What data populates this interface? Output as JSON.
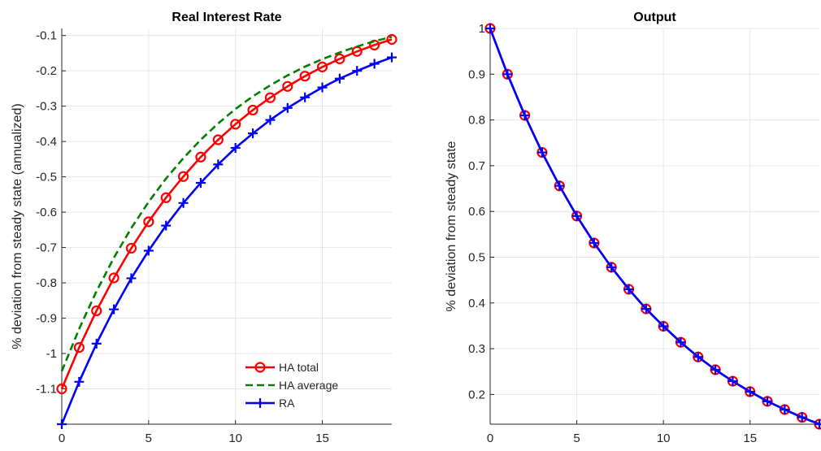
{
  "chart_data": [
    {
      "type": "line",
      "title": "Real Interest Rate",
      "xlabel": "",
      "ylabel": "% deviation from steady state (annualized)",
      "xlim": [
        0,
        19
      ],
      "ylim": [
        -1.2,
        -0.08
      ],
      "xticks": [
        0,
        5,
        10,
        15
      ],
      "yticks": [
        -1.1,
        -1,
        -0.9,
        -0.8,
        -0.7,
        -0.6,
        -0.5,
        -0.4,
        -0.3,
        -0.2,
        -0.1
      ],
      "ytick_labels": [
        "-1.1",
        "-1",
        "-0.9",
        "-0.8",
        "-0.7",
        "-0.6",
        "-0.5",
        "-0.4",
        "-0.3",
        "-0.2",
        "-0.1"
      ],
      "xtick_labels": [
        "0",
        "5",
        "10",
        "15"
      ],
      "grid": true,
      "legend_position": "bottom-right",
      "x": [
        0,
        1,
        2,
        3,
        4,
        5,
        6,
        7,
        8,
        9,
        10,
        11,
        12,
        13,
        14,
        15,
        16,
        17,
        18,
        19
      ],
      "series": [
        {
          "name": "HA total",
          "color": "#ff0000",
          "style": "solid",
          "marker": "circle",
          "values": [
            -1.1,
            -0.983,
            -0.879,
            -0.786,
            -0.702,
            -0.627,
            -0.559,
            -0.499,
            -0.444,
            -0.395,
            -0.351,
            -0.311,
            -0.276,
            -0.244,
            -0.215,
            -0.189,
            -0.166,
            -0.145,
            -0.127,
            -0.111
          ]
        },
        {
          "name": "HA average",
          "color": "#008000",
          "style": "dashed",
          "marker": "none",
          "values": [
            -1.05,
            -0.93,
            -0.824,
            -0.729,
            -0.645,
            -0.571,
            -0.505,
            -0.447,
            -0.395,
            -0.349,
            -0.308,
            -0.272,
            -0.241,
            -0.213,
            -0.188,
            -0.167,
            -0.148,
            -0.131,
            -0.116,
            -0.104
          ]
        },
        {
          "name": "RA",
          "color": "#0000ff",
          "style": "solid",
          "marker": "plus",
          "values": [
            -1.2,
            -1.08,
            -0.972,
            -0.875,
            -0.787,
            -0.709,
            -0.638,
            -0.574,
            -0.517,
            -0.465,
            -0.418,
            -0.377,
            -0.339,
            -0.305,
            -0.275,
            -0.247,
            -0.222,
            -0.2,
            -0.18,
            -0.162
          ]
        }
      ]
    },
    {
      "type": "line",
      "title": "Output",
      "xlabel": "",
      "ylabel": "% deviation from steady state",
      "xlim": [
        0,
        19
      ],
      "ylim": [
        0.135,
        1.0
      ],
      "xticks": [
        0,
        5,
        10,
        15
      ],
      "yticks": [
        0.2,
        0.3,
        0.4,
        0.5,
        0.6,
        0.7,
        0.8,
        0.9,
        1
      ],
      "ytick_labels": [
        "0.2",
        "0.3",
        "0.4",
        "0.5",
        "0.6",
        "0.7",
        "0.8",
        "0.9",
        "1"
      ],
      "xtick_labels": [
        "0",
        "5",
        "10",
        "15"
      ],
      "grid": true,
      "x": [
        0,
        1,
        2,
        3,
        4,
        5,
        6,
        7,
        8,
        9,
        10,
        11,
        12,
        13,
        14,
        15,
        16,
        17,
        18,
        19
      ],
      "series": [
        {
          "name": "HA total",
          "color": "#ff0000",
          "style": "solid",
          "marker": "circle",
          "values": [
            1,
            0.9,
            0.81,
            0.729,
            0.656,
            0.59,
            0.531,
            0.478,
            0.43,
            0.387,
            0.349,
            0.314,
            0.282,
            0.254,
            0.229,
            0.206,
            0.185,
            0.167,
            0.15,
            0.135
          ]
        },
        {
          "name": "HA average",
          "color": "#008000",
          "style": "dashed",
          "marker": "none",
          "values": [
            1,
            0.9,
            0.81,
            0.729,
            0.656,
            0.59,
            0.531,
            0.478,
            0.43,
            0.387,
            0.349,
            0.314,
            0.282,
            0.254,
            0.229,
            0.206,
            0.185,
            0.167,
            0.15,
            0.135
          ]
        },
        {
          "name": "RA",
          "color": "#0000ff",
          "style": "solid",
          "marker": "plus",
          "values": [
            1,
            0.9,
            0.81,
            0.729,
            0.656,
            0.59,
            0.531,
            0.478,
            0.43,
            0.387,
            0.349,
            0.314,
            0.282,
            0.254,
            0.229,
            0.206,
            0.185,
            0.167,
            0.15,
            0.135
          ]
        }
      ]
    }
  ]
}
